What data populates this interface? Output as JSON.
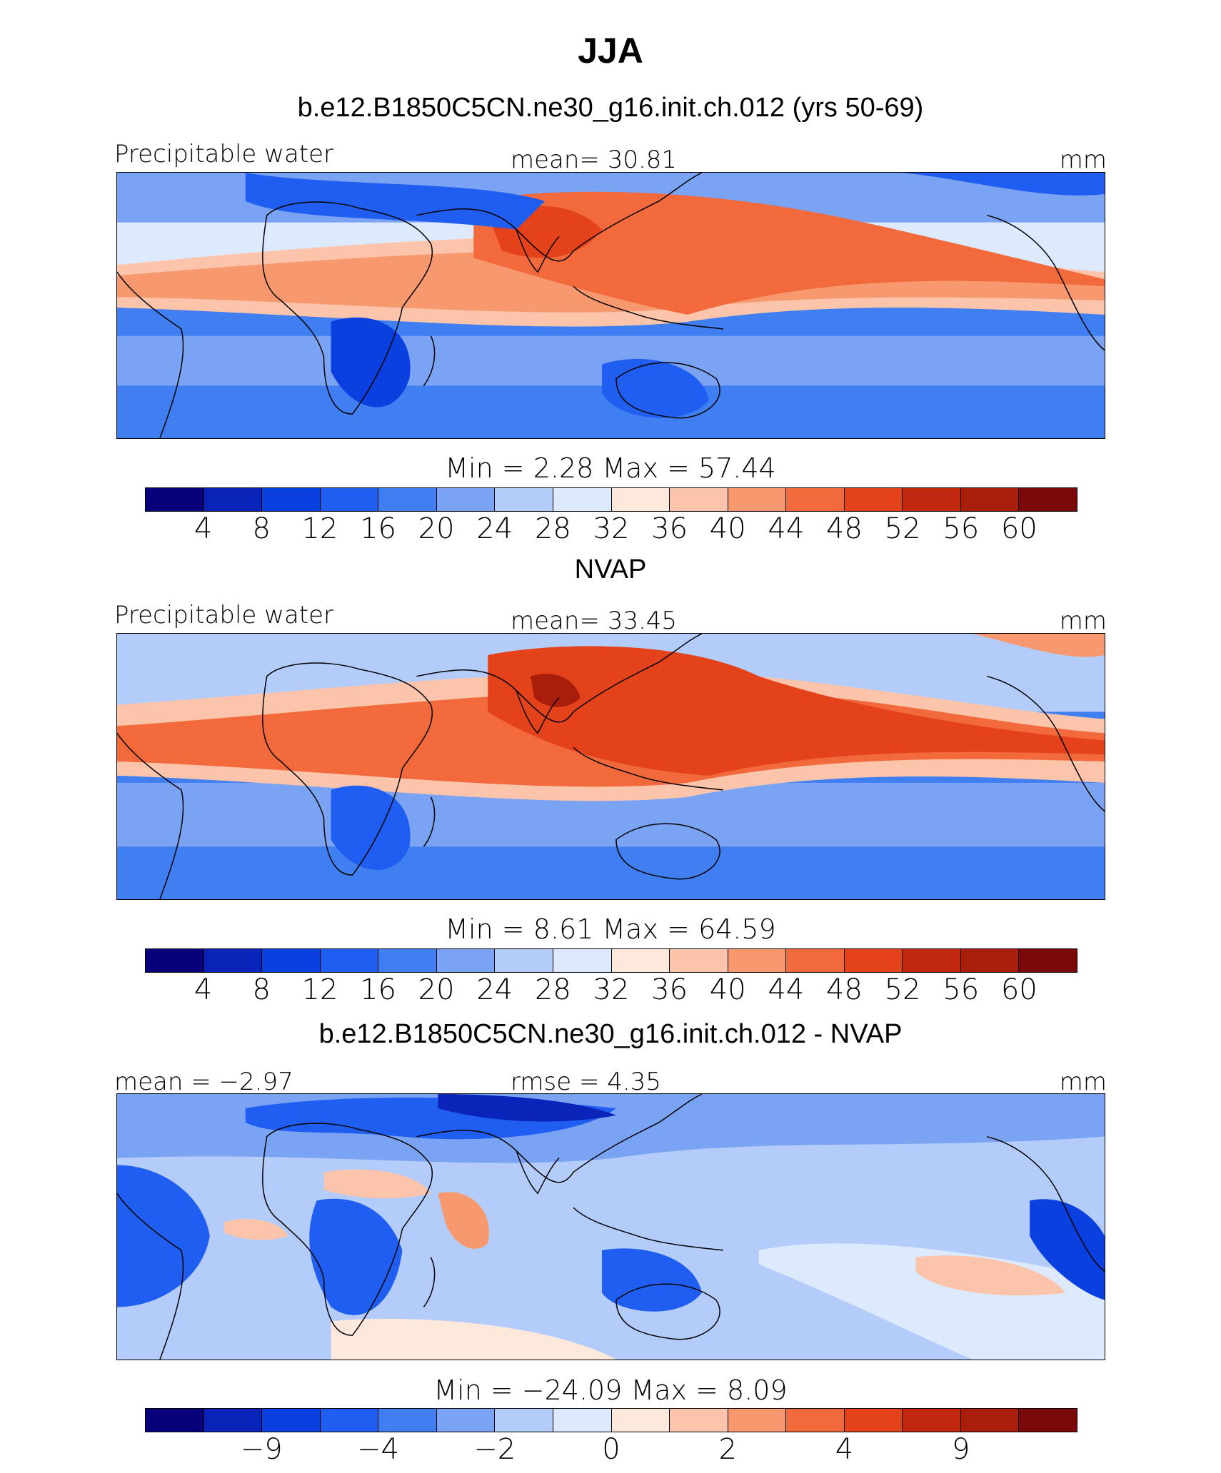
{
  "figure": {
    "title": "JJA",
    "palette": [
      "#08007a",
      "#0a23b8",
      "#0a3fe0",
      "#1f5ef0",
      "#3f7ff2",
      "#7aa3f4",
      "#b3ccfa",
      "#dde9fc",
      "#fde8dc",
      "#fbc4ab",
      "#f7986f",
      "#f26a3c",
      "#e4421a",
      "#c2270f",
      "#a81e0b",
      "#7a0808"
    ]
  },
  "panels": [
    {
      "subtitle": "b.e12.B1850C5CN.ne30_g16.init.ch.012 (yrs 50-69)",
      "left_label": "Precipitable water",
      "mid_label": "mean=   30.81",
      "units": "mm",
      "min_max": "Min  =     2.28  Max  =    57.44",
      "colorbar_ticks": [
        "4",
        "8",
        "12",
        "16",
        "20",
        "24",
        "28",
        "32",
        "36",
        "40",
        "44",
        "48",
        "52",
        "56",
        "60"
      ],
      "field_type": "precip-model"
    },
    {
      "subtitle": "NVAP",
      "left_label": "Precipitable water",
      "mid_label": "mean=   33.45",
      "units": "mm",
      "min_max": "Min  =     8.61  Max  =    64.59",
      "colorbar_ticks": [
        "4",
        "8",
        "12",
        "16",
        "20",
        "24",
        "28",
        "32",
        "36",
        "40",
        "44",
        "48",
        "52",
        "56",
        "60"
      ],
      "field_type": "precip-obs"
    },
    {
      "subtitle": "b.e12.B1850C5CN.ne30_g16.init.ch.012 - NVAP",
      "left_label": "mean  =   −2.97",
      "mid_label": "rmse  =     4.35",
      "units": "mm",
      "min_max": "Min  =  −24.09  Max  =     8.09",
      "colorbar_ticks": [
        "−9",
        "−4",
        "−2",
        "0",
        "2",
        "4",
        "9"
      ],
      "field_type": "difference"
    }
  ]
}
